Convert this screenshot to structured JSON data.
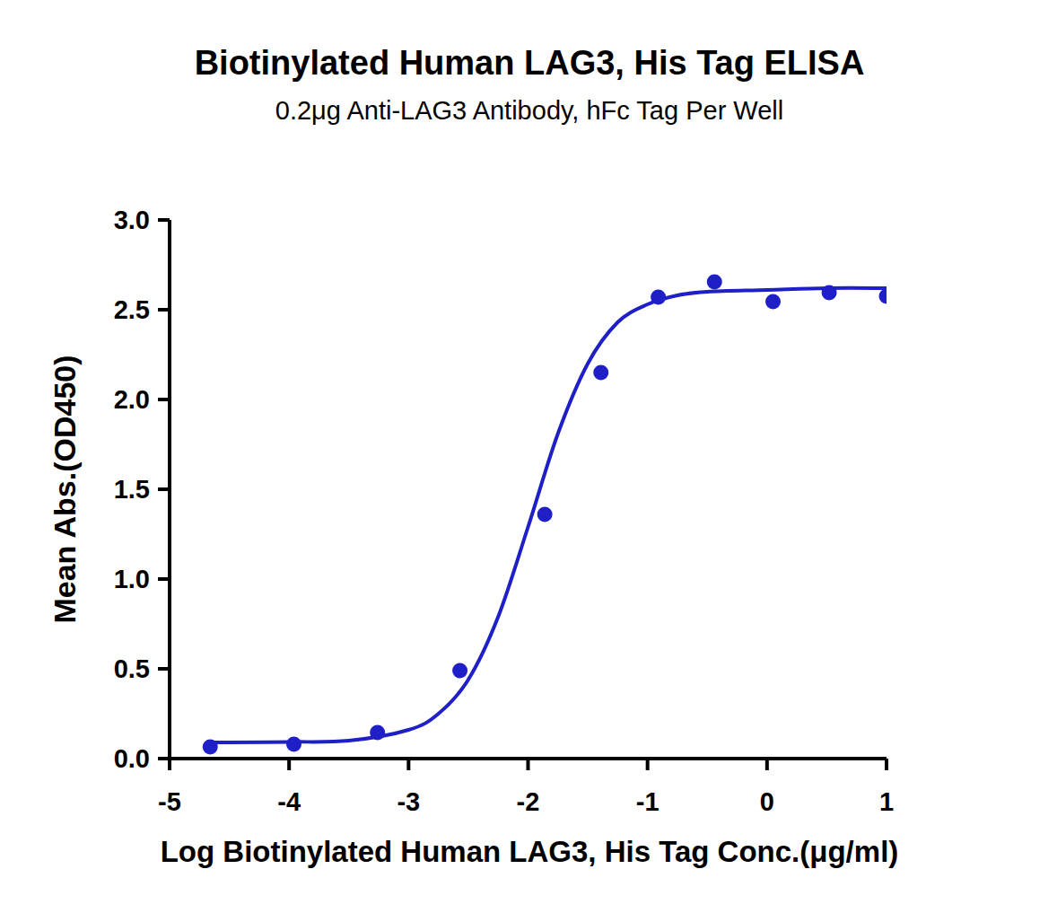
{
  "chart_data": {
    "type": "scatter",
    "title": "Biotinylated Human LAG3, His Tag ELISA",
    "subtitle": "0.2μg Anti-LAG3 Antibody, hFc Tag Per Well",
    "x_label": "Log Biotinylated Human LAG3, His Tag Conc.(μg/ml)",
    "y_label": "Mean Abs.(OD450)",
    "xlim": [
      -5,
      1
    ],
    "ylim": [
      0,
      3
    ],
    "xticks": [
      -5,
      -4,
      -3,
      -2,
      -1,
      0,
      1
    ],
    "yticks": [
      {
        "value": 0,
        "label": "0.0"
      },
      {
        "value": 0.5,
        "label": "0.5"
      },
      {
        "value": 1,
        "label": "1.0"
      },
      {
        "value": 1.5,
        "label": "1.5"
      },
      {
        "value": 2,
        "label": "2.0"
      },
      {
        "value": 2.5,
        "label": "2.5"
      },
      {
        "value": 3,
        "label": "3.0"
      }
    ],
    "grid": false,
    "series": [
      {
        "type": "scatter",
        "marker": "circle",
        "color": "#1f1fc8",
        "x": [
          -4.66,
          -3.96,
          -3.26,
          -2.57,
          -1.86,
          -1.39,
          -0.91,
          -0.44,
          0.05,
          0.52,
          1.0
        ],
        "values": [
          0.065,
          0.08,
          0.145,
          0.49,
          1.36,
          2.15,
          2.57,
          2.655,
          2.545,
          2.595,
          2.575
        ]
      },
      {
        "type": "line",
        "line_style": "solid",
        "color": "#1f1fc8",
        "x": [
          -4.66,
          -4.5,
          -4,
          -3.5,
          -3,
          -2.75,
          -2.5,
          -2.25,
          -2,
          -1.75,
          -1.5,
          -1.25,
          -1,
          -0.75,
          -0.5,
          0,
          0.5,
          1
        ],
        "values": [
          0.09,
          0.09,
          0.093,
          0.1,
          0.16,
          0.25,
          0.44,
          0.79,
          1.29,
          1.81,
          2.2,
          2.43,
          2.53,
          2.58,
          2.6,
          2.61,
          2.62,
          2.62
        ]
      }
    ]
  }
}
